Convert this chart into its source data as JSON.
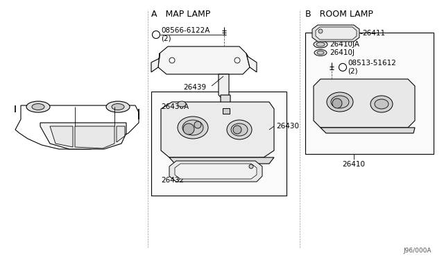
{
  "bg_color": "#ffffff",
  "line_color": "#000000",
  "section_a_label": "A   MAP LAMP",
  "section_b_label": "B   ROOM LAMP",
  "diagram_ref": "J96/000A",
  "font_size_part": 7.5,
  "font_size_section": 9,
  "font_size_ref": 6.5
}
